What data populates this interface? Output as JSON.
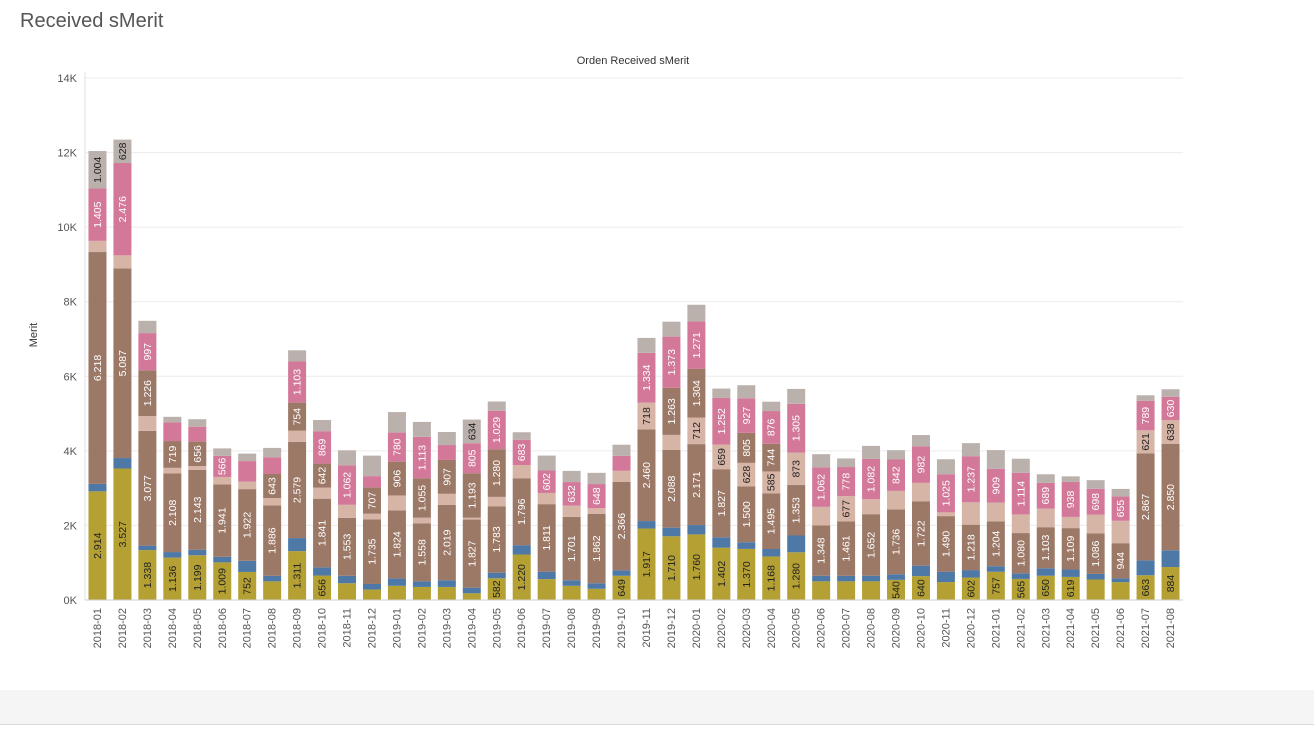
{
  "page": {
    "title": "Received sMerit"
  },
  "chart_data": {
    "type": "bar",
    "stacked": true,
    "title": "Orden Received sMerit",
    "xlabel": "",
    "ylabel": "Merit",
    "ylim": [
      0,
      14000
    ],
    "yticks": [
      "0K",
      "2K",
      "4K",
      "6K",
      "8K",
      "10K",
      "12K",
      "14K"
    ],
    "grid": true,
    "legend": "none",
    "categories": [
      "2018-01",
      "2018-02",
      "2018-03",
      "2018-04",
      "2018-05",
      "2018-06",
      "2018-07",
      "2018-08",
      "2018-09",
      "2018-10",
      "2018-11",
      "2018-12",
      "2019-01",
      "2019-02",
      "2019-03",
      "2019-04",
      "2019-05",
      "2019-06",
      "2019-07",
      "2019-08",
      "2019-09",
      "2019-10",
      "2019-11",
      "2019-12",
      "2020-01",
      "2020-02",
      "2020-03",
      "2020-04",
      "2020-05",
      "2020-06",
      "2020-07",
      "2020-08",
      "2020-09",
      "2020-10",
      "2020-11",
      "2020-12",
      "2021-01",
      "2021-02",
      "2021-03",
      "2021-04",
      "2021-05",
      "2021-06",
      "2021-07",
      "2021-08"
    ],
    "series": [
      {
        "color": "#b5a033",
        "values": [
          2914,
          3527,
          1338,
          1136,
          1199,
          1009,
          752,
          500,
          1311,
          656,
          450,
          280,
          380,
          350,
          350,
          180,
          582,
          1220,
          560,
          380,
          300,
          649,
          1917,
          1710,
          1760,
          1402,
          1370,
          1168,
          1280,
          500,
          500,
          500,
          540,
          640,
          480,
          602,
          757,
          565,
          650,
          619,
          550,
          480,
          663,
          884
        ],
        "labels": [
          "2.914",
          "3.527",
          "1.338",
          "1.136",
          "1.199",
          "1.009",
          "752",
          "",
          "1.311",
          "656",
          "",
          "",
          "",
          "",
          "",
          "",
          "582",
          "1.220",
          "",
          "",
          "",
          "649",
          "1.917",
          "1.710",
          "1.760",
          "1.402",
          "1.370",
          "1.168",
          "1.280",
          "",
          "",
          "",
          "540",
          "640",
          "",
          "602",
          "757",
          "565",
          "650",
          "619",
          "",
          "",
          "663",
          "884"
        ]
      },
      {
        "color": "#4e79a7",
        "values": [
          200,
          280,
          120,
          150,
          150,
          150,
          300,
          150,
          350,
          220,
          200,
          150,
          200,
          150,
          180,
          150,
          150,
          250,
          200,
          150,
          150,
          150,
          200,
          230,
          250,
          280,
          180,
          200,
          450,
          150,
          150,
          150,
          150,
          280,
          280,
          200,
          150,
          150,
          200,
          200,
          150,
          100,
          400,
          450
        ],
        "labels": []
      },
      {
        "color": "#9c7866",
        "values": [
          6218,
          5087,
          3077,
          2108,
          2143,
          1941,
          1922,
          1886,
          2579,
          1841,
          1553,
          1735,
          1824,
          1558,
          2019,
          1827,
          1783,
          1796,
          1811,
          1701,
          1862,
          2366,
          2460,
          2088,
          2171,
          1827,
          1500,
          1495,
          1353,
          1348,
          1461,
          1652,
          1736,
          1722,
          1490,
          1218,
          1204,
          1080,
          1103,
          1109,
          1086,
          944,
          2867,
          2850
        ],
        "labels": [
          "6.218",
          "5.087",
          "3.077",
          "2.108",
          "2.143",
          "1.941",
          "1.922",
          "1.886",
          "2.579",
          "1.841",
          "1.553",
          "1.735",
          "1.824",
          "1.558",
          "2.019",
          "1.827",
          "1.783",
          "1.796",
          "1.811",
          "1.701",
          "1.862",
          "2.366",
          "2.460",
          "2.088",
          "2.171",
          "1.827",
          "1.500",
          "1.495",
          "1.353",
          "1.348",
          "1.461",
          "1.652",
          "1.736",
          "1.722",
          "1.490",
          "1.218",
          "1.204",
          "1.080",
          "1.103",
          "1.109",
          "1.086",
          "944",
          "2.867",
          "2.850"
        ]
      },
      {
        "color": "#d6b4a6",
        "values": [
          300,
          350,
          400,
          150,
          100,
          200,
          200,
          200,
          300,
          300,
          350,
          150,
          400,
          150,
          300,
          50,
          250,
          350,
          300,
          300,
          150,
          300,
          718,
          400,
          712,
          659,
          628,
          585,
          873,
          500,
          677,
          400,
          500,
          500,
          100,
          600,
          500,
          500,
          500,
          300,
          500,
          600,
          621,
          638
        ],
        "labels": [
          "",
          "",
          "",
          "",
          "",
          "",
          "",
          "",
          "",
          "",
          "",
          "",
          "",
          "",
          "",
          "",
          "",
          "",
          "",
          "",
          "",
          "",
          "718",
          "",
          "712",
          "659",
          "628",
          "585",
          "873",
          "",
          "677",
          "",
          "",
          "",
          "",
          "",
          "",
          "",
          "",
          "",
          "",
          "",
          "621",
          "638"
        ]
      },
      {
        "color": "#9c7866",
        "values": [
          0,
          0,
          1226,
          719,
          656,
          0,
          0,
          643,
          754,
          642,
          0,
          707,
          906,
          1055,
          907,
          1193,
          1280,
          0,
          0,
          0,
          0,
          0,
          0,
          1263,
          1304,
          0,
          805,
          744,
          0,
          0,
          0,
          0,
          0,
          0,
          0,
          0,
          0,
          0,
          0,
          0,
          0,
          0,
          0,
          0
        ],
        "labels": [
          "",
          "",
          "1.226",
          "719",
          "656",
          "",
          "",
          "643",
          "754",
          "642",
          "",
          "707",
          "906",
          "1.055",
          "907",
          "1.193",
          "1.280",
          "",
          "",
          "",
          "",
          "",
          "",
          "1.263",
          "1.304",
          "",
          "805",
          "744",
          "",
          "",
          "",
          "",
          "",
          "",
          "",
          "",
          "",
          "",
          "",
          "",
          "",
          "",
          "",
          ""
        ]
      },
      {
        "color": "#d4789a",
        "values": [
          1405,
          2476,
          997,
          500,
          400,
          566,
          552,
          450,
          1103,
          869,
          1062,
          300,
          780,
          1113,
          400,
          805,
          1029,
          683,
          602,
          632,
          648,
          400,
          1334,
          1373,
          1271,
          1252,
          927,
          876,
          1305,
          1062,
          778,
          1082,
          842,
          982,
          1025,
          1237,
          909,
          1114,
          689,
          938,
          698,
          655,
          789,
          630
        ],
        "labels": [
          "1.405",
          "2.476",
          "997",
          "",
          "",
          "566",
          "",
          "",
          "1.103",
          "869",
          "1.062",
          "",
          "780",
          "1.113",
          "",
          "805",
          "1.029",
          "683",
          "602",
          "632",
          "648",
          "",
          "1.334",
          "1.373",
          "1.271",
          "1.252",
          "927",
          "876",
          "1.305",
          "1.062",
          "778",
          "1.082",
          "842",
          "982",
          "1.025",
          "1.237",
          "909",
          "1.114",
          "689",
          "938",
          "698",
          "655",
          "789",
          "630"
        ]
      },
      {
        "color": "#bab0ac",
        "values": [
          1004,
          628,
          330,
          150,
          200,
          200,
          200,
          250,
          300,
          300,
          400,
          550,
          550,
          400,
          350,
          634,
          250,
          200,
          400,
          300,
          300,
          300,
          400,
          400,
          450,
          250,
          350,
          250,
          400,
          350,
          230,
          350,
          250,
          300,
          400,
          350,
          500,
          380,
          230,
          150,
          230,
          200,
          150,
          200
        ],
        "labels": [
          "1.004",
          "628",
          "",
          "",
          "",
          "",
          "",
          "",
          "",
          "",
          "",
          "",
          "",
          "",
          "",
          "634",
          "",
          "",
          "",
          "",
          "",
          "",
          "",
          "",
          "",
          "",
          "",
          "",
          "",
          "",
          "",
          "",
          "",
          "",
          "",
          "",
          "",
          "",
          "",
          "",
          "",
          "",
          "",
          ""
        ]
      }
    ]
  }
}
